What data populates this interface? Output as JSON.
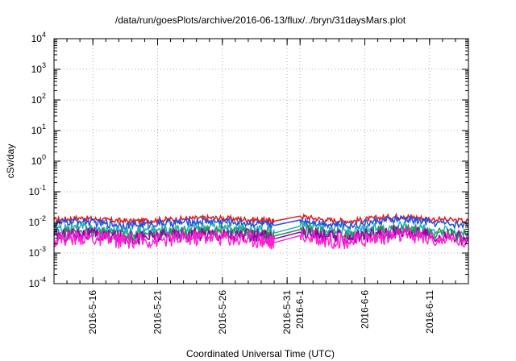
{
  "chart_data": {
    "type": "line",
    "title": "/data/run/goesPlots/archive/2016-06-13/flux/../bryn/31daysMars.plot",
    "xlabel": "Coordinated Universal Time (UTC)",
    "ylabel": "cSv/day",
    "y_scale": "log",
    "ylim": [
      0.0001,
      10000
    ],
    "y_ticks": [
      {
        "value": 0.0001,
        "base": "10",
        "exp": "-4"
      },
      {
        "value": 0.001,
        "base": "10",
        "exp": "-3"
      },
      {
        "value": 0.01,
        "base": "10",
        "exp": "-2"
      },
      {
        "value": 0.1,
        "base": "10",
        "exp": "-1"
      },
      {
        "value": 1,
        "base": "10",
        "exp": "0"
      },
      {
        "value": 10,
        "base": "10",
        "exp": "1"
      },
      {
        "value": 100,
        "base": "10",
        "exp": "2"
      },
      {
        "value": 1000,
        "base": "10",
        "exp": "3"
      },
      {
        "value": 10000,
        "base": "10",
        "exp": "4"
      }
    ],
    "xlim": [
      "2016-05-13",
      "2016-06-14"
    ],
    "x_ticks": [
      "2016-5-16",
      "2016-5-21",
      "2016-5-26",
      "2016-5-31",
      "2016-6-1",
      "2016-6-6",
      "2016-6-11"
    ],
    "x_tick_dates": [
      "2016-05-16",
      "2016-05-21",
      "2016-05-26",
      "2016-05-31",
      "2016-06-01",
      "2016-06-06",
      "2016-06-11"
    ],
    "grid": true,
    "gap": [
      "2016-05-30",
      "2016-06-01"
    ],
    "series": [
      {
        "color": "#e41a1c",
        "x": [
          "2016-05-13",
          "2016-05-15",
          "2016-05-17",
          "2016-05-19",
          "2016-05-21",
          "2016-05-23",
          "2016-05-25",
          "2016-05-27",
          "2016-05-29",
          "2016-05-30",
          "2016-06-01",
          "2016-06-03",
          "2016-06-05",
          "2016-06-07",
          "2016-06-09",
          "2016-06-11",
          "2016-06-14"
        ],
        "values": [
          0.012,
          0.014,
          0.012,
          0.011,
          0.012,
          0.013,
          0.014,
          0.013,
          0.012,
          0.011,
          0.016,
          0.012,
          0.011,
          0.014,
          0.016,
          0.013,
          0.011
        ]
      },
      {
        "color": "#1f4fe0",
        "x": [
          "2016-05-13",
          "2016-05-15",
          "2016-05-17",
          "2016-05-19",
          "2016-05-21",
          "2016-05-23",
          "2016-05-25",
          "2016-05-27",
          "2016-05-29",
          "2016-05-30",
          "2016-06-01",
          "2016-06-03",
          "2016-06-05",
          "2016-06-07",
          "2016-06-09",
          "2016-06-11",
          "2016-06-14"
        ],
        "values": [
          0.009,
          0.011,
          0.009,
          0.008,
          0.009,
          0.01,
          0.011,
          0.01,
          0.009,
          0.008,
          0.012,
          0.009,
          0.008,
          0.011,
          0.013,
          0.01,
          0.008
        ]
      },
      {
        "color": "#20b0b8",
        "x": [
          "2016-05-13",
          "2016-05-15",
          "2016-05-17",
          "2016-05-19",
          "2016-05-21",
          "2016-05-23",
          "2016-05-25",
          "2016-05-27",
          "2016-05-29",
          "2016-05-30",
          "2016-06-01",
          "2016-06-03",
          "2016-06-05",
          "2016-06-07",
          "2016-06-09",
          "2016-06-11",
          "2016-06-14"
        ],
        "values": [
          0.0055,
          0.007,
          0.0055,
          0.005,
          0.0055,
          0.006,
          0.007,
          0.0062,
          0.0055,
          0.0045,
          0.0075,
          0.0055,
          0.005,
          0.0065,
          0.008,
          0.006,
          0.005
        ]
      },
      {
        "color": "#2e8b57",
        "x": [
          "2016-05-13",
          "2016-05-15",
          "2016-05-17",
          "2016-05-19",
          "2016-05-21",
          "2016-05-23",
          "2016-05-25",
          "2016-05-27",
          "2016-05-29",
          "2016-05-30",
          "2016-06-01",
          "2016-06-03",
          "2016-06-05",
          "2016-06-07",
          "2016-06-09",
          "2016-06-11",
          "2016-06-14"
        ],
        "values": [
          0.0042,
          0.0052,
          0.0042,
          0.0038,
          0.0042,
          0.0046,
          0.0052,
          0.0046,
          0.0042,
          0.0036,
          0.0058,
          0.0042,
          0.0038,
          0.005,
          0.0062,
          0.0046,
          0.0038
        ]
      },
      {
        "color": "#9400a8",
        "x": [
          "2016-05-13",
          "2016-05-15",
          "2016-05-17",
          "2016-05-19",
          "2016-05-21",
          "2016-05-23",
          "2016-05-25",
          "2016-05-27",
          "2016-05-29",
          "2016-05-30",
          "2016-06-01",
          "2016-06-03",
          "2016-06-05",
          "2016-06-07",
          "2016-06-09",
          "2016-06-11",
          "2016-06-14"
        ],
        "values": [
          0.0035,
          0.0043,
          0.0035,
          0.0031,
          0.0035,
          0.0039,
          0.0043,
          0.0038,
          0.0035,
          0.0029,
          0.0048,
          0.0035,
          0.0031,
          0.0042,
          0.0052,
          0.0038,
          0.0031
        ]
      },
      {
        "color": "#ff1fd6",
        "x": [
          "2016-05-13",
          "2016-05-15",
          "2016-05-17",
          "2016-05-19",
          "2016-05-21",
          "2016-05-23",
          "2016-05-25",
          "2016-05-27",
          "2016-05-29",
          "2016-05-30",
          "2016-06-01",
          "2016-06-03",
          "2016-06-05",
          "2016-06-07",
          "2016-06-09",
          "2016-06-11",
          "2016-06-14"
        ],
        "values": [
          0.0028,
          0.0034,
          0.0027,
          0.0024,
          0.0027,
          0.003,
          0.0034,
          0.003,
          0.0027,
          0.0022,
          0.0037,
          0.0027,
          0.0024,
          0.0032,
          0.004,
          0.003,
          0.0024
        ]
      }
    ]
  }
}
